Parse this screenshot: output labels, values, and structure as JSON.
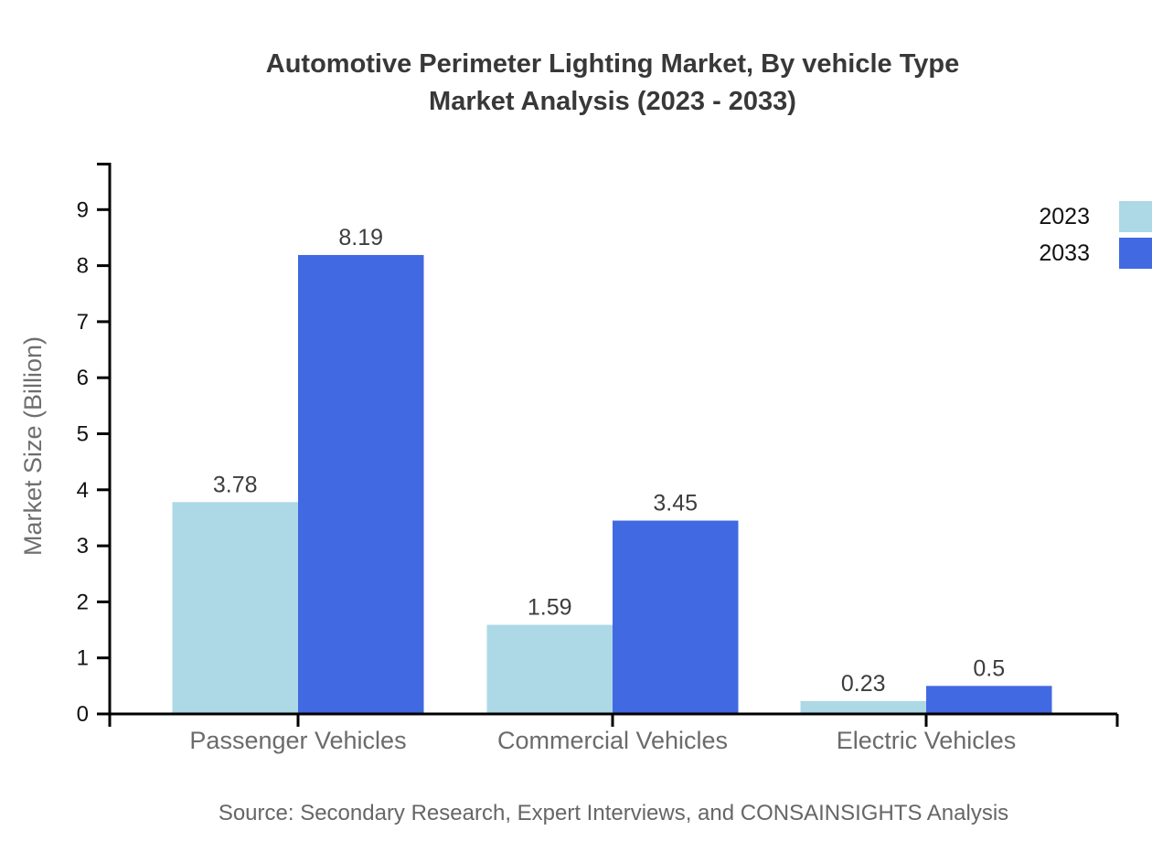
{
  "title": {
    "line1": "Automotive Perimeter Lighting Market, By vehicle Type",
    "line2": "Market Analysis (2023 - 2033)"
  },
  "y_axis_title": "Market Size (Billion)",
  "source": "Source: Secondary Research, Expert Interviews, and CONSAINSIGHTS Analysis",
  "legend": [
    {
      "label": "2023",
      "color": "#ADD8E6"
    },
    {
      "label": "2033",
      "color": "#4169E1"
    }
  ],
  "colors": {
    "series_2023": "#ADD8E6",
    "series_2033": "#4169E1",
    "axis": "#000000",
    "tick_label": "#111111",
    "value_label": "#3d3d3d",
    "category_label": "#6b6b6b",
    "muted_text": "#666666",
    "title_text": "#383838"
  },
  "chart_data": {
    "type": "bar",
    "title": "Automotive Perimeter Lighting Market, By vehicle Type Market Analysis (2023 - 2033)",
    "categories": [
      "Passenger Vehicles",
      "Commercial Vehicles",
      "Electric Vehicles"
    ],
    "series": [
      {
        "name": "2023",
        "color": "#ADD8E6",
        "values": [
          3.78,
          1.59,
          0.23
        ]
      },
      {
        "name": "2033",
        "color": "#4169E1",
        "values": [
          8.19,
          3.45,
          0.5
        ]
      }
    ],
    "xlabel": "",
    "ylabel": "Market Size (Billion)",
    "ylim": [
      0,
      9.85
    ],
    "yticks": [
      0,
      1,
      2,
      3,
      4,
      5,
      6,
      7,
      8,
      9
    ],
    "grid": false,
    "bar_value_labels": true,
    "legend_position": "top-right"
  }
}
